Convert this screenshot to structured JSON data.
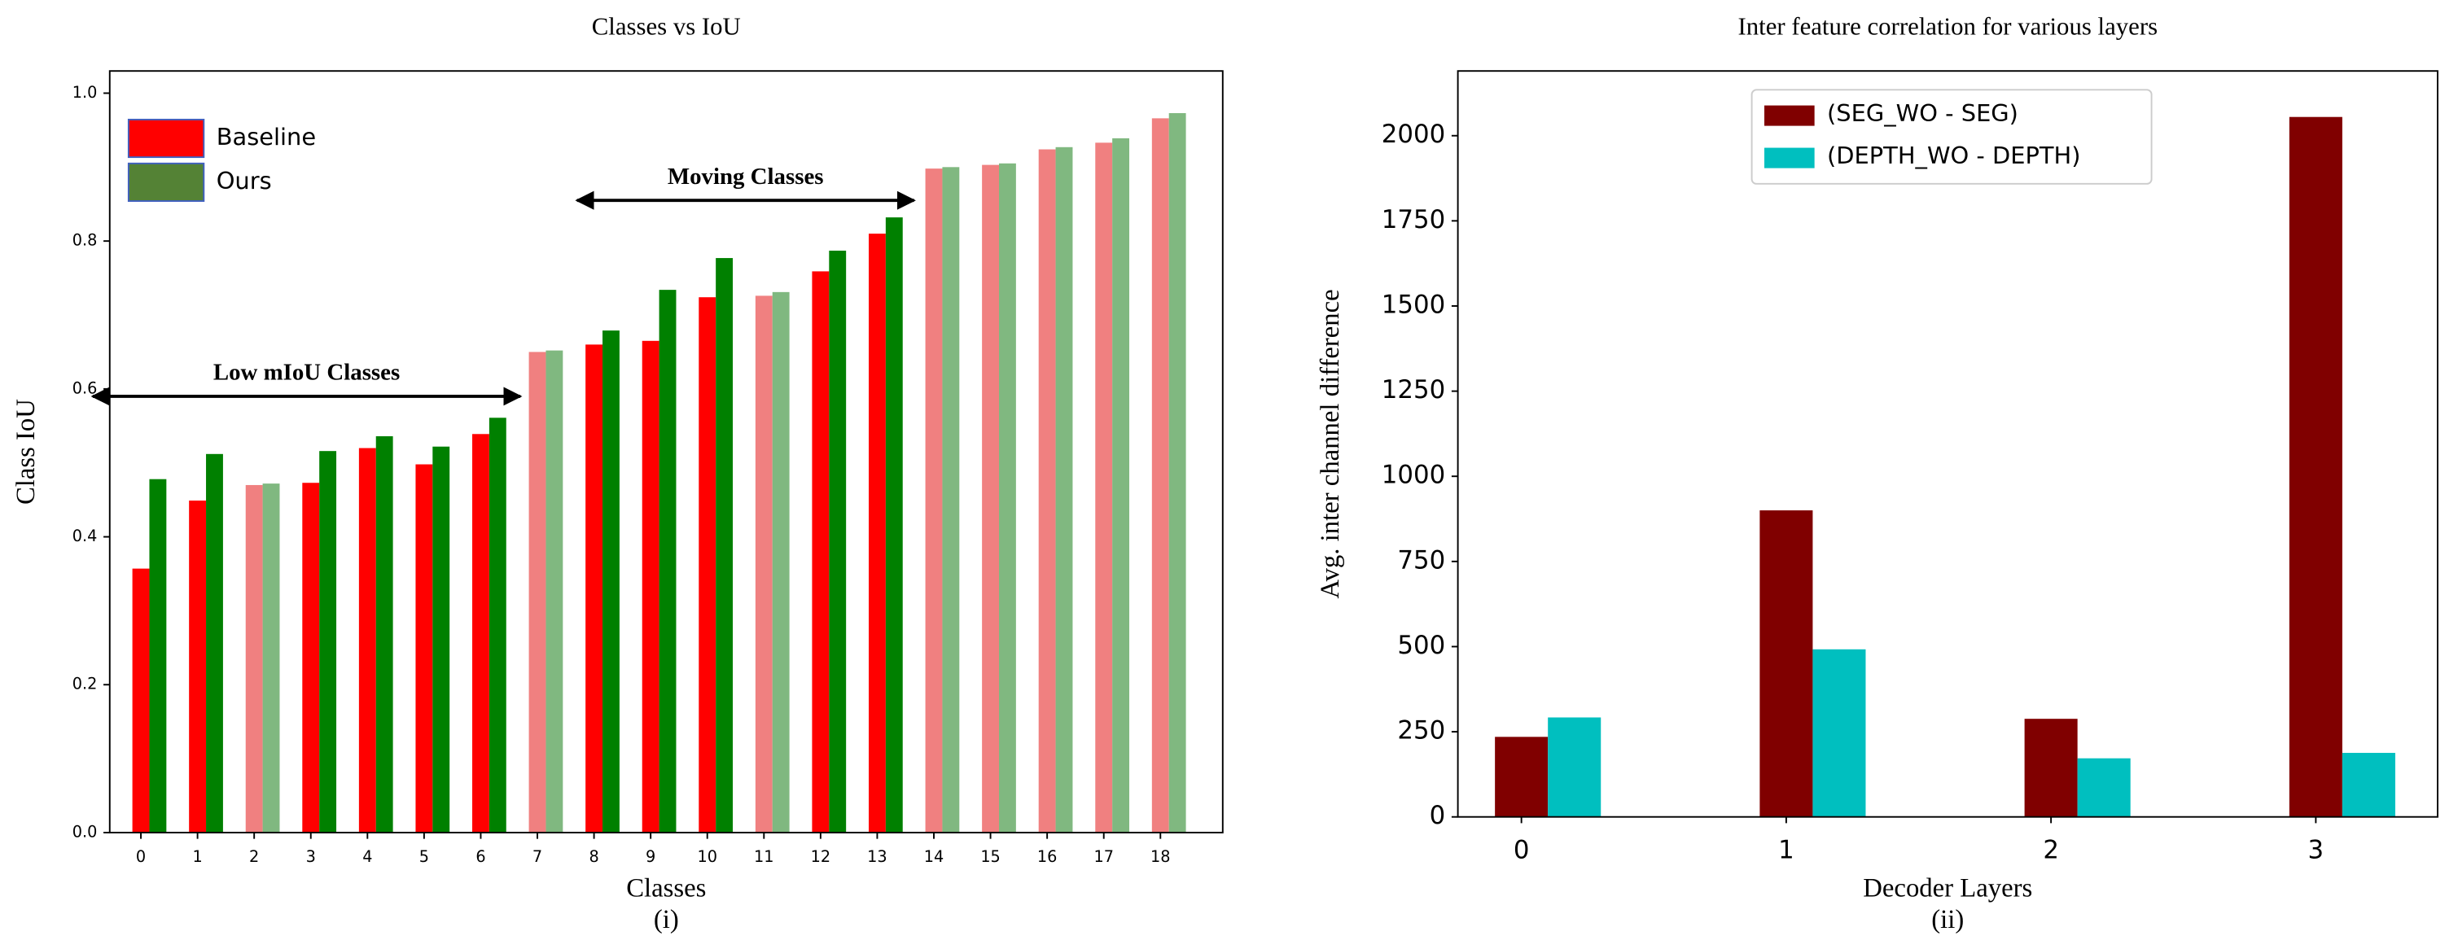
{
  "chart_data": [
    {
      "type": "bar",
      "title": "Classes vs IoU",
      "x_label": "Classes",
      "y_label": "Class IoU",
      "caption": "(i)",
      "categories": [
        "0",
        "1",
        "2",
        "3",
        "4",
        "5",
        "6",
        "7",
        "8",
        "9",
        "10",
        "11",
        "12",
        "13",
        "14",
        "15",
        "16",
        "17",
        "18"
      ],
      "series": [
        {
          "name": "Baseline",
          "color": "#ff0000",
          "colors": [
            "#ff0000",
            "#ff0000",
            "#f08080",
            "#ff0000",
            "#ff0000",
            "#ff0000",
            "#ff0000",
            "#f08080",
            "#ff0000",
            "#ff0000",
            "#ff0000",
            "#f08080",
            "#ff0000",
            "#ff0000",
            "#f08080",
            "#f08080",
            "#f08080",
            "#f08080",
            "#f08080"
          ],
          "values": [
            0.357,
            0.449,
            0.47,
            0.473,
            0.52,
            0.498,
            0.539,
            0.65,
            0.66,
            0.665,
            0.724,
            0.726,
            0.759,
            0.81,
            0.898,
            0.903,
            0.924,
            0.933,
            0.966
          ]
        },
        {
          "name": "Ours",
          "color": "#548235",
          "colors": [
            "#008000",
            "#008000",
            "#80b880",
            "#008000",
            "#008000",
            "#008000",
            "#008000",
            "#80b880",
            "#008000",
            "#008000",
            "#008000",
            "#80b880",
            "#008000",
            "#008000",
            "#80b880",
            "#80b880",
            "#80b880",
            "#80b880",
            "#80b880"
          ],
          "values": [
            0.478,
            0.512,
            0.472,
            0.516,
            0.536,
            0.522,
            0.561,
            0.652,
            0.679,
            0.734,
            0.777,
            0.731,
            0.787,
            0.832,
            0.9,
            0.905,
            0.927,
            0.939,
            0.973
          ]
        }
      ],
      "ylim": [
        0,
        1.03
      ],
      "yticks": [
        {
          "value": 0,
          "label": "0.0"
        },
        {
          "value": 0.2,
          "label": "0.2"
        },
        {
          "value": 0.4,
          "label": "0.4"
        },
        {
          "value": 0.6,
          "label": "0.6"
        },
        {
          "value": 0.8,
          "label": "0.8"
        },
        {
          "value": 1,
          "label": "1.0"
        }
      ],
      "legend": "upper left",
      "annotations": [
        "Low mIoU Classes",
        "Moving Classes"
      ]
    },
    {
      "type": "bar",
      "title": "Inter feature correlation for various layers",
      "x_label": "Decoder Layers",
      "y_label": "Avg. inter channel difference",
      "caption": "(ii)",
      "categories": [
        "0",
        "1",
        "2",
        "3"
      ],
      "series": [
        {
          "name": "(SEG_WO - SEG)",
          "color": "#800000",
          "values": [
            235,
            900,
            288,
            2055
          ]
        },
        {
          "name": "(DEPTH_WO - DEPTH)",
          "color": "#00bfbf",
          "values": [
            292,
            492,
            172,
            188
          ]
        }
      ],
      "ylim": [
        0,
        2190
      ],
      "yticks": [
        0,
        250,
        500,
        750,
        1000,
        1250,
        1500,
        1750,
        2000
      ],
      "legend": "upper center"
    }
  ]
}
